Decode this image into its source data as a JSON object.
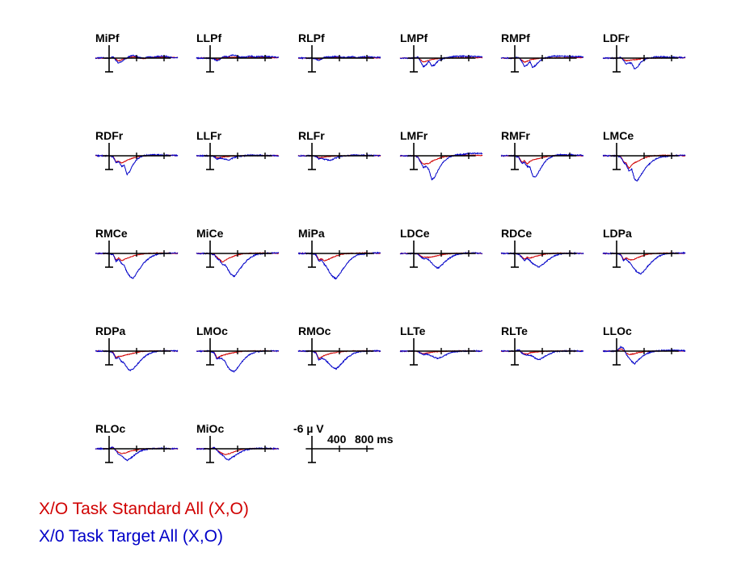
{
  "chart_data": {
    "type": "line",
    "grid": false,
    "x_unit": "ms",
    "y_unit": "µV",
    "y_axis_inverted": true,
    "x_range": [
      -200,
      1000
    ],
    "y_range": [
      -6,
      12
    ],
    "scale_bar": {
      "y_label": "-6 µ V",
      "x_labels": [
        "400",
        "800 ms"
      ],
      "x_ticks": [
        0,
        400,
        800
      ],
      "y_value": -6
    },
    "series": [
      {
        "name": "X/O Task Standard All (X,O)",
        "color": "#d00000"
      },
      {
        "name": "X/0 Task Target All (X,O)",
        "color": "#0000c8"
      }
    ],
    "x": [
      -200,
      -100,
      0,
      60,
      100,
      140,
      180,
      220,
      260,
      300,
      350,
      400,
      450,
      500,
      550,
      600,
      650,
      700,
      800,
      900,
      1000
    ],
    "panels": [
      {
        "label": "MiPf",
        "standard": [
          0,
          0,
          0,
          -0.3,
          0.6,
          1.2,
          0.8,
          0.4,
          0,
          -0.4,
          -0.6,
          -0.3,
          0,
          0.2,
          0,
          -0.2,
          -0.3,
          -0.4,
          -0.4,
          -0.3,
          -0.2
        ],
        "target": [
          0,
          -0.2,
          0,
          -0.6,
          1.0,
          2.4,
          1.6,
          0.6,
          0,
          -0.8,
          -1.2,
          -0.6,
          -0.3,
          0,
          -0.4,
          -0.6,
          -0.3,
          -0.8,
          -0.9,
          -0.4,
          -0.1
        ]
      },
      {
        "label": "LLPf",
        "standard": [
          0,
          0,
          0,
          0.3,
          0.6,
          0.3,
          -0.2,
          -0.4,
          -0.3,
          -0.3,
          -0.4,
          -0.3,
          -0.3,
          -0.2,
          -0.2,
          -0.3,
          -0.3,
          -0.3,
          -0.3,
          -0.2,
          -0.2
        ],
        "target": [
          0,
          0,
          0,
          0.5,
          1.2,
          0.6,
          -0.4,
          -0.8,
          -0.5,
          -1.2,
          -1.4,
          -0.8,
          -0.4,
          -0.4,
          -0.7,
          -0.9,
          -0.5,
          -0.7,
          -0.8,
          -0.6,
          -0.4
        ]
      },
      {
        "label": "RLPf",
        "standard": [
          0,
          0,
          0,
          0.2,
          0.4,
          0.2,
          -0.2,
          -0.3,
          -0.2,
          -0.2,
          -0.3,
          -0.2,
          -0.2,
          -0.2,
          -0.2,
          -0.2,
          -0.2,
          -0.2,
          -0.2,
          -0.1,
          -0.1
        ],
        "target": [
          0,
          0,
          0,
          0.4,
          1.0,
          0.5,
          -0.4,
          -0.6,
          -0.4,
          -0.6,
          -0.8,
          -0.5,
          -0.3,
          -0.3,
          -0.5,
          -0.6,
          -0.4,
          -0.5,
          -0.6,
          -0.4,
          -0.3
        ]
      },
      {
        "label": "LMPf",
        "standard": [
          0,
          0,
          0,
          -0.2,
          0.8,
          1.8,
          1.4,
          1.0,
          0.7,
          0.4,
          0.2,
          0.1,
          0,
          0,
          -0.1,
          -0.1,
          -0.2,
          -0.2,
          -0.2,
          -0.2,
          -0.2
        ],
        "target": [
          0,
          0,
          0,
          -0.5,
          1.5,
          4.0,
          3.0,
          1.5,
          3.6,
          3.2,
          1.5,
          0.6,
          0,
          -0.3,
          -0.6,
          -0.8,
          -0.8,
          -0.9,
          -0.8,
          -0.7,
          -0.5
        ]
      },
      {
        "label": "RMPf",
        "standard": [
          0,
          0,
          0,
          -0.2,
          0.8,
          1.9,
          1.4,
          0.9,
          0.6,
          0.3,
          0.1,
          0,
          0,
          0,
          -0.1,
          -0.1,
          -0.2,
          -0.2,
          -0.2,
          -0.2,
          -0.2
        ],
        "target": [
          0,
          0,
          0,
          -0.4,
          1.4,
          4.0,
          3.2,
          1.6,
          4.4,
          3.4,
          1.6,
          0.5,
          -0.2,
          -0.5,
          -0.8,
          -0.9,
          -0.9,
          -0.9,
          -0.8,
          -0.7,
          -0.5
        ]
      },
      {
        "label": "LDFr",
        "standard": [
          0,
          0,
          0,
          -0.2,
          0.6,
          1.2,
          1.0,
          0.9,
          0.8,
          0.6,
          0.4,
          0.2,
          0.1,
          0,
          0,
          -0.1,
          -0.1,
          -0.2,
          -0.2,
          -0.2,
          -0.1
        ],
        "target": [
          0,
          0,
          0,
          -0.3,
          1.0,
          2.6,
          2.2,
          2.4,
          5.0,
          4.2,
          2.0,
          0.6,
          0,
          -0.2,
          -0.5,
          -0.6,
          -0.6,
          -0.5,
          -0.4,
          -0.3,
          -0.2
        ]
      },
      {
        "label": "RDFr",
        "standard": [
          0,
          0,
          0,
          0.3,
          2.8,
          2.4,
          3.4,
          2.8,
          2.0,
          1.6,
          1.0,
          0.5,
          0.2,
          0,
          0,
          -0.1,
          -0.2,
          -0.2,
          -0.2,
          -0.2,
          -0.1
        ],
        "target": [
          0,
          0,
          0,
          0.5,
          3.2,
          2.6,
          4.8,
          4.4,
          8.6,
          7.2,
          4.0,
          1.8,
          0.6,
          0,
          -0.3,
          -0.4,
          -0.4,
          -0.4,
          -0.3,
          -0.2,
          -0.1
        ]
      },
      {
        "label": "LLFr",
        "standard": [
          0,
          0,
          0,
          0.2,
          1.0,
          0.8,
          0.6,
          0.4,
          0.3,
          0.2,
          0.1,
          0,
          0,
          0,
          -0.1,
          -0.1,
          -0.1,
          -0.1,
          -0.1,
          -0.1,
          -0.1
        ],
        "target": [
          0,
          0,
          0,
          0.4,
          1.6,
          1.0,
          1.2,
          1.6,
          2.0,
          1.5,
          0.8,
          0.4,
          0.1,
          0,
          -0.2,
          -0.3,
          -0.2,
          -0.2,
          -0.2,
          -0.1,
          0
        ]
      },
      {
        "label": "RLFr",
        "standard": [
          0,
          0,
          0,
          0.2,
          1.0,
          0.8,
          0.7,
          0.5,
          0.3,
          0.2,
          0.1,
          0,
          0,
          0,
          -0.1,
          -0.1,
          -0.1,
          -0.1,
          -0.1,
          -0.1,
          -0.1
        ],
        "target": [
          0,
          0,
          0,
          0.3,
          1.4,
          1.2,
          1.6,
          1.8,
          2.2,
          1.6,
          0.9,
          0.4,
          0.1,
          0,
          -0.2,
          -0.3,
          -0.3,
          -0.2,
          -0.2,
          -0.1,
          0
        ]
      },
      {
        "label": "LMFr",
        "standard": [
          0,
          0,
          0,
          0.5,
          2.6,
          3.8,
          3.6,
          3.6,
          2.6,
          2.0,
          1.4,
          0.8,
          0.4,
          0.2,
          0,
          -0.1,
          -0.2,
          -0.2,
          -0.2,
          -0.2,
          -0.1
        ],
        "target": [
          0,
          0,
          0,
          0.6,
          3.0,
          5.4,
          4.8,
          6.4,
          10.8,
          10.2,
          6.8,
          4.2,
          2.2,
          1.0,
          0.2,
          -0.3,
          -0.5,
          -0.6,
          -1.0,
          -1.2,
          -1.0
        ]
      },
      {
        "label": "RMFr",
        "standard": [
          0,
          0,
          0,
          0.6,
          3.0,
          2.2,
          3.8,
          2.6,
          2.0,
          1.6,
          1.2,
          0.8,
          0.4,
          0.2,
          0,
          -0.1,
          -0.2,
          -0.2,
          -0.2,
          -0.1,
          0
        ],
        "target": [
          0,
          0,
          0,
          0.8,
          3.4,
          3.0,
          4.8,
          5.2,
          9.2,
          10.0,
          7.4,
          4.6,
          2.4,
          1.0,
          0.2,
          -0.3,
          -0.4,
          -0.4,
          -0.4,
          -0.3,
          -0.2
        ]
      },
      {
        "label": "LMCe",
        "standard": [
          0,
          0,
          0,
          0.4,
          2.6,
          3.4,
          5.8,
          4.2,
          3.2,
          2.6,
          1.8,
          1.0,
          0.5,
          0.2,
          0,
          -0.1,
          -0.2,
          -0.2,
          -0.2,
          -0.1,
          0
        ],
        "target": [
          0,
          0,
          0,
          0.6,
          3.0,
          4.0,
          7.0,
          6.0,
          10.6,
          11.6,
          9.0,
          6.6,
          4.6,
          3.0,
          1.8,
          1.0,
          0.6,
          0.3,
          0,
          -0.2,
          -0.2
        ]
      },
      {
        "label": "RMCe",
        "standard": [
          0,
          0,
          0,
          0.4,
          3.0,
          2.0,
          3.4,
          2.8,
          2.2,
          1.8,
          1.2,
          0.7,
          0.4,
          0.2,
          0,
          -0.1,
          -0.1,
          -0.2,
          -0.2,
          -0.1,
          0
        ],
        "target": [
          0,
          0,
          0,
          0.6,
          3.6,
          2.6,
          4.6,
          5.6,
          8.6,
          10.4,
          11.6,
          9.0,
          6.8,
          4.6,
          3.0,
          1.8,
          1.0,
          0.4,
          0,
          -0.2,
          -0.2
        ]
      },
      {
        "label": "MiCe",
        "standard": [
          0,
          0,
          0,
          0.4,
          1.6,
          2.8,
          4.0,
          3.2,
          2.4,
          1.8,
          1.2,
          0.7,
          0.3,
          0.1,
          0,
          -0.1,
          -0.1,
          -0.2,
          -0.2,
          -0.1,
          0
        ],
        "target": [
          0,
          0,
          0,
          0.6,
          2.2,
          3.2,
          5.2,
          5.4,
          7.4,
          9.4,
          10.6,
          8.6,
          6.4,
          4.4,
          2.8,
          1.6,
          0.8,
          0.3,
          0,
          -0.2,
          -0.2
        ]
      },
      {
        "label": "MiPa",
        "standard": [
          0,
          0,
          0,
          0.4,
          3.0,
          2.4,
          3.4,
          3.0,
          2.4,
          1.8,
          1.2,
          0.6,
          0.3,
          0.1,
          0,
          -0.1,
          -0.1,
          -0.2,
          -0.2,
          -0.1,
          0
        ],
        "target": [
          0,
          0,
          0,
          0.6,
          3.6,
          3.0,
          5.0,
          6.4,
          9.0,
          10.6,
          11.6,
          9.6,
          7.2,
          5.0,
          3.2,
          1.8,
          1.0,
          0.4,
          0,
          -0.2,
          -0.2
        ]
      },
      {
        "label": "LDCe",
        "standard": [
          0,
          0,
          0,
          0.2,
          1.2,
          1.8,
          1.6,
          1.8,
          1.6,
          1.4,
          1.0,
          0.6,
          0.3,
          0.2,
          0,
          -0.1,
          -0.1,
          -0.1,
          -0.1,
          -0.1,
          0
        ],
        "target": [
          0,
          0,
          0,
          0.3,
          1.6,
          2.4,
          2.2,
          3.0,
          4.4,
          5.6,
          6.8,
          5.6,
          4.0,
          2.6,
          1.6,
          0.8,
          0.3,
          0,
          -0.2,
          -0.2,
          -0.1
        ]
      },
      {
        "label": "RDCe",
        "standard": [
          0,
          0,
          0,
          0.3,
          1.4,
          2.6,
          1.8,
          2.2,
          1.8,
          1.4,
          1.0,
          0.6,
          0.3,
          0.1,
          0,
          -0.1,
          -0.1,
          -0.1,
          -0.1,
          -0.1,
          0
        ],
        "target": [
          0,
          0,
          0,
          0.4,
          1.8,
          3.2,
          2.4,
          3.2,
          4.6,
          5.4,
          6.4,
          5.2,
          3.8,
          2.6,
          1.6,
          0.8,
          0.4,
          0.1,
          -0.1,
          -0.1,
          0
        ]
      },
      {
        "label": "LDPa",
        "standard": [
          0,
          0,
          0,
          0.4,
          2.8,
          2.0,
          2.8,
          3.0,
          2.6,
          2.0,
          1.4,
          0.8,
          0.4,
          0.2,
          0,
          -0.1,
          -0.1,
          -0.2,
          -0.2,
          -0.1,
          0
        ],
        "target": [
          0,
          0,
          0,
          0.6,
          3.2,
          2.6,
          4.0,
          5.2,
          7.2,
          8.6,
          9.4,
          8.0,
          6.0,
          4.2,
          2.8,
          1.6,
          0.8,
          0.3,
          0,
          -0.2,
          -0.2
        ]
      },
      {
        "label": "RDPa",
        "standard": [
          0,
          0,
          0,
          0.6,
          3.0,
          2.2,
          2.4,
          2.0,
          1.6,
          1.4,
          1.0,
          0.6,
          0.3,
          0.1,
          0,
          -0.1,
          -0.1,
          -0.1,
          -0.1,
          -0.1,
          0
        ],
        "target": [
          0,
          0,
          0,
          0.8,
          3.6,
          2.8,
          4.8,
          5.4,
          7.6,
          9.0,
          8.2,
          6.4,
          4.6,
          3.0,
          1.8,
          1.0,
          0.4,
          0.1,
          -0.1,
          -0.1,
          0
        ]
      },
      {
        "label": "LMOc",
        "standard": [
          0,
          0,
          0,
          0.6,
          3.2,
          2.4,
          2.0,
          1.6,
          1.2,
          1.0,
          0.7,
          0.4,
          0.2,
          0.1,
          0,
          -0.1,
          -0.1,
          -0.1,
          -0.1,
          -0.1,
          0
        ],
        "target": [
          0,
          0,
          0,
          0.8,
          3.8,
          3.0,
          3.6,
          4.8,
          7.4,
          8.8,
          9.4,
          7.6,
          5.4,
          3.6,
          2.2,
          1.2,
          0.6,
          0.2,
          0,
          -0.1,
          -0.1
        ]
      },
      {
        "label": "RMOc",
        "standard": [
          0,
          0,
          0,
          0.6,
          3.4,
          2.6,
          2.0,
          1.6,
          1.2,
          0.9,
          0.6,
          0.4,
          0.2,
          0.1,
          0,
          -0.1,
          -0.1,
          -0.1,
          -0.1,
          -0.1,
          0
        ],
        "target": [
          0,
          0,
          0,
          0.8,
          4.2,
          3.2,
          3.8,
          4.8,
          6.0,
          7.6,
          8.2,
          6.8,
          5.0,
          3.4,
          2.2,
          1.2,
          0.6,
          0.2,
          0,
          -0.1,
          -0.1
        ]
      },
      {
        "label": "LLTe",
        "standard": [
          0,
          0,
          0,
          0.2,
          0.8,
          1.2,
          1.0,
          0.8,
          0.6,
          0.4,
          0.3,
          0.2,
          0.1,
          0,
          0,
          0,
          -0.1,
          -0.1,
          -0.1,
          0,
          0
        ],
        "target": [
          0,
          0,
          0,
          0.3,
          1.0,
          1.6,
          1.4,
          1.6,
          2.2,
          2.8,
          3.4,
          2.8,
          2.0,
          1.2,
          0.6,
          0.3,
          0.1,
          0,
          -0.1,
          -0.1,
          0
        ]
      },
      {
        "label": "RLTe",
        "standard": [
          0,
          0,
          0,
          -0.4,
          0.6,
          1.2,
          1.4,
          0.8,
          0.6,
          0.4,
          0.3,
          0.2,
          0.1,
          0,
          0,
          0,
          -0.1,
          -0.1,
          -0.1,
          0,
          0
        ],
        "target": [
          0,
          0,
          0,
          -0.6,
          0.8,
          1.6,
          1.8,
          1.8,
          2.4,
          3.2,
          4.0,
          3.2,
          2.2,
          1.4,
          0.7,
          0.3,
          0.1,
          0,
          -0.1,
          -0.1,
          0
        ]
      },
      {
        "label": "LLOc",
        "standard": [
          0,
          0,
          0,
          -1.0,
          -0.4,
          0.8,
          1.6,
          1.4,
          1.2,
          0.8,
          0.5,
          0.3,
          0.1,
          0,
          0,
          -0.1,
          -0.1,
          -0.1,
          -0.1,
          0,
          0
        ],
        "target": [
          0,
          0,
          0,
          -2.0,
          -1.2,
          1.4,
          3.0,
          4.8,
          5.8,
          4.6,
          3.0,
          1.8,
          1.0,
          0.4,
          0.1,
          -0.1,
          -0.2,
          -0.3,
          -0.4,
          -0.3,
          -0.2
        ]
      },
      {
        "label": "RLOc",
        "standard": [
          0,
          0,
          0,
          -0.6,
          0.8,
          1.6,
          2.2,
          2.0,
          1.6,
          1.2,
          0.8,
          0.5,
          0.2,
          0.1,
          0,
          -0.1,
          -0.1,
          -0.1,
          -0.1,
          0,
          0
        ],
        "target": [
          0,
          0,
          0,
          -0.8,
          1.0,
          2.6,
          3.4,
          4.2,
          5.4,
          4.6,
          3.4,
          2.2,
          1.2,
          0.6,
          0.2,
          0,
          -0.1,
          -0.2,
          -0.2,
          -0.1,
          0
        ]
      },
      {
        "label": "MiOc",
        "standard": [
          0,
          0,
          0,
          -0.4,
          0.6,
          1.4,
          2.2,
          2.6,
          2.4,
          2.0,
          1.4,
          0.8,
          0.4,
          0.2,
          0,
          -0.1,
          -0.1,
          -0.1,
          -0.1,
          0,
          0
        ],
        "target": [
          0,
          0,
          0,
          -0.6,
          0.8,
          2.0,
          3.0,
          4.2,
          5.2,
          4.4,
          3.4,
          2.4,
          1.4,
          0.8,
          0.3,
          0,
          -0.1,
          -0.2,
          -0.2,
          -0.1,
          0
        ]
      }
    ]
  },
  "legend": {
    "standard_label": "X/O Task Standard All (X,O)",
    "target_label": "X/0 Task Target All (X,O)",
    "standard_color": "#d00000",
    "target_color": "#0000c8"
  }
}
